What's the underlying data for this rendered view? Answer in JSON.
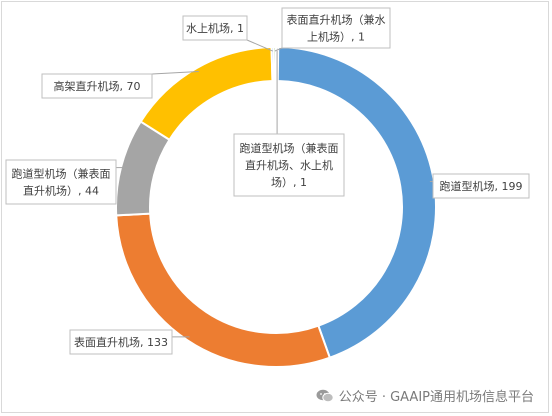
{
  "chart_data": {
    "type": "pie",
    "title": "",
    "categories": [
      "跑道型机场",
      "表面直升机场",
      "跑道型机场（兼表面直升机场）",
      "高架直升机场",
      "水上机场",
      "表面直升机场（兼水上机场）",
      "跑道型机场（兼表面直升机场、水上机场）"
    ],
    "values": [
      199,
      133,
      44,
      70,
      1,
      1,
      1
    ],
    "colors": [
      "#5b9bd5",
      "#ed7d31",
      "#a5a5a5",
      "#ffc000",
      "#4472c4",
      "#70ad47",
      "#264478"
    ],
    "callouts": [
      {
        "lines": [
          "跑道型机场, 199"
        ]
      },
      {
        "lines": [
          "表面直升机场, 133"
        ]
      },
      {
        "lines": [
          "跑道型机场（兼表面",
          "直升机场）, 44"
        ]
      },
      {
        "lines": [
          "高架直升机场, 70"
        ]
      },
      {
        "lines": [
          "水上机场, 1"
        ]
      },
      {
        "lines": [
          "表面直升机场（兼水",
          "上机场）, 1"
        ]
      },
      {
        "lines": [
          "跑道型机场（兼表面",
          "直升机场、水上机",
          "场）, 1"
        ]
      }
    ]
  },
  "watermark": {
    "text": "公众号 · GAAIP通用机场信息平台",
    "icon": "wechat-icon"
  }
}
